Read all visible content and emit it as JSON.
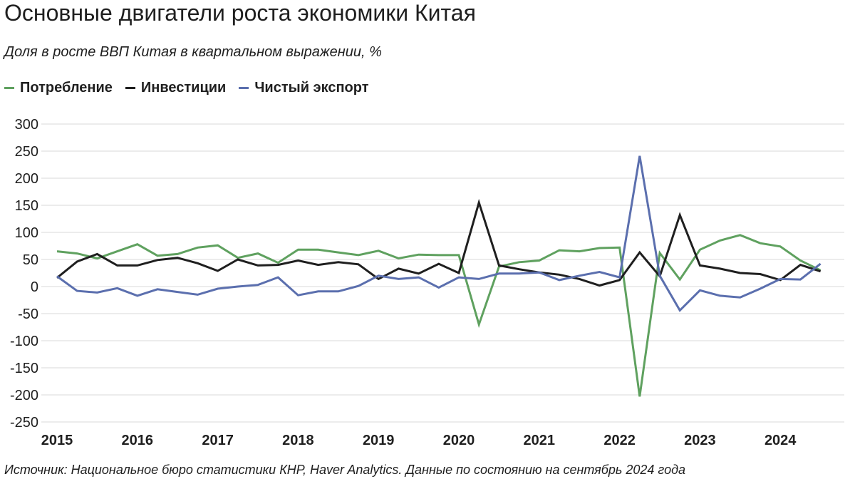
{
  "chart_data": {
    "type": "line",
    "title": "Основные двигатели роста экономики Китая",
    "subtitle": "Доля в росте ВВП Китая в квартальном выражении, %",
    "source": "Источник: Национальное бюро статистики КНР, Haver Analytics. Данные по состоянию на сентябрь 2024 года",
    "legend": "top-left",
    "grid": true,
    "ylim": [
      -250,
      300
    ],
    "yticks": [
      300,
      250,
      200,
      150,
      100,
      50,
      0,
      -50,
      -100,
      -150,
      -200,
      -250
    ],
    "xlabels": [
      "2015",
      "2016",
      "2017",
      "2018",
      "2019",
      "2020",
      "2021",
      "2022",
      "2023",
      "2024"
    ],
    "colors": {
      "consumption": "#5fa15f",
      "investment": "#1f1f1f",
      "net_exports": "#5b6fae"
    },
    "series": [
      {
        "name": "Потребление",
        "color": "#5fa15f",
        "values": [
          65,
          61,
          52,
          65,
          78,
          57,
          60,
          72,
          76,
          53,
          61,
          44,
          68,
          68,
          63,
          58,
          66,
          52,
          59,
          58,
          58,
          -70,
          37,
          45,
          48,
          67,
          65,
          71,
          72,
          -203,
          62,
          13,
          68,
          85,
          95,
          80,
          74,
          48,
          30
        ]
      },
      {
        "name": "Инвестиции",
        "color": "#1f1f1f",
        "values": [
          16,
          46,
          60,
          39,
          39,
          49,
          53,
          43,
          29,
          50,
          39,
          40,
          48,
          40,
          45,
          41,
          14,
          33,
          24,
          42,
          25,
          155,
          39,
          32,
          26,
          22,
          14,
          2,
          12,
          63,
          19,
          132,
          39,
          33,
          25,
          23,
          12,
          40,
          28
        ]
      },
      {
        "name": "Чистый экспорт",
        "color": "#5b6fae",
        "values": [
          19,
          -8,
          -11,
          -3,
          -17,
          -5,
          -10,
          -15,
          -4,
          0,
          3,
          17,
          -16,
          -9,
          -9,
          1,
          20,
          14,
          17,
          -2,
          17,
          14,
          24,
          24,
          26,
          12,
          20,
          27,
          17,
          241,
          20,
          -44,
          -7,
          -17,
          -20,
          -4,
          14,
          13,
          42
        ]
      }
    ]
  }
}
